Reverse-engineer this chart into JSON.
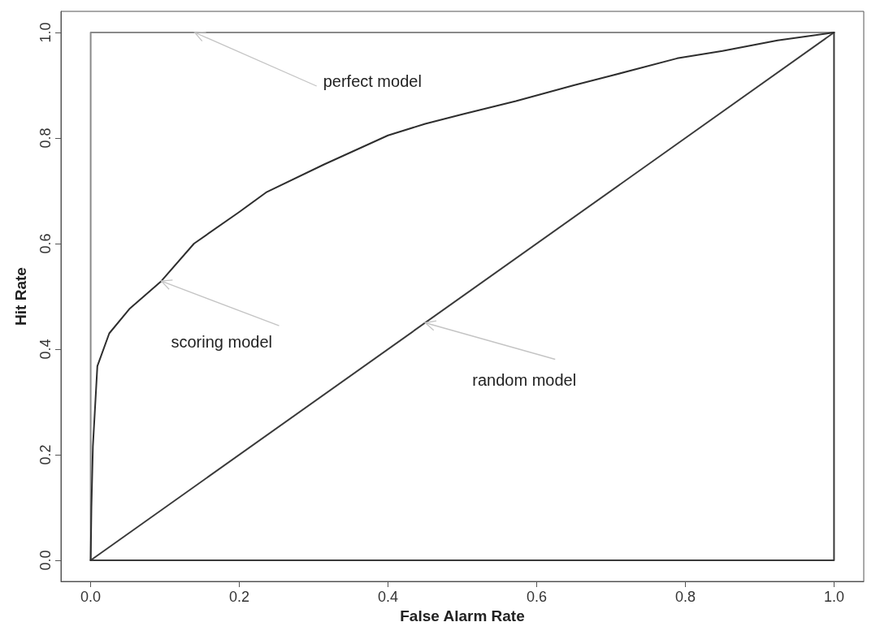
{
  "chart_data": {
    "type": "line",
    "xlabel": "False Alarm Rate",
    "ylabel": "Hit Rate",
    "xlim": [
      -0.04,
      1.04
    ],
    "ylim": [
      -0.04,
      1.04
    ],
    "xticks": [
      {
        "value": 0,
        "label": "0.0"
      },
      {
        "value": 0.2,
        "label": "0.2"
      },
      {
        "value": 0.4,
        "label": "0.4"
      },
      {
        "value": 0.6,
        "label": "0.6"
      },
      {
        "value": 0.8,
        "label": "0.8"
      },
      {
        "value": 1,
        "label": "1.0"
      }
    ],
    "yticks": [
      {
        "value": 0,
        "label": "0.0"
      },
      {
        "value": 0.2,
        "label": "0.2"
      },
      {
        "value": 0.4,
        "label": "0.4"
      },
      {
        "value": 0.6,
        "label": "0.6"
      },
      {
        "value": 0.8,
        "label": "0.8"
      },
      {
        "value": 1,
        "label": "1.0"
      }
    ],
    "grid": false,
    "marker": "none",
    "line_style": "solid",
    "series": [
      {
        "color": "#8a8a8a",
        "x": [
          0,
          0,
          1
        ],
        "values": [
          0,
          1,
          1
        ]
      },
      {
        "color": "#3a3a3a",
        "x": [
          0,
          1,
          1
        ],
        "values": [
          0,
          0,
          1
        ]
      },
      {
        "color": "#3a3a3a",
        "x": [
          0,
          1
        ],
        "values": [
          0,
          1
        ]
      },
      {
        "color": "#2e2e2e",
        "x": [
          0,
          0.001,
          0.003,
          0.009,
          0.025,
          0.052,
          0.095,
          0.139,
          0.2,
          0.236,
          0.314,
          0.4,
          0.45,
          0.5,
          0.572,
          0.65,
          0.7,
          0.789,
          0.85,
          0.924,
          1
        ],
        "values": [
          0,
          0.1,
          0.216,
          0.368,
          0.43,
          0.476,
          0.529,
          0.6,
          0.66,
          0.697,
          0.75,
          0.805,
          0.827,
          0.845,
          0.87,
          0.9,
          0.918,
          0.951,
          0.965,
          0.985,
          1
        ]
      }
    ],
    "annotations": [
      {
        "text": "perfect model",
        "x": 0.14,
        "y": 1
      },
      {
        "text": "scoring model",
        "x": 0.095,
        "y": 0.529
      },
      {
        "text": "random model",
        "x": 0.45,
        "y": 0.45
      }
    ]
  }
}
